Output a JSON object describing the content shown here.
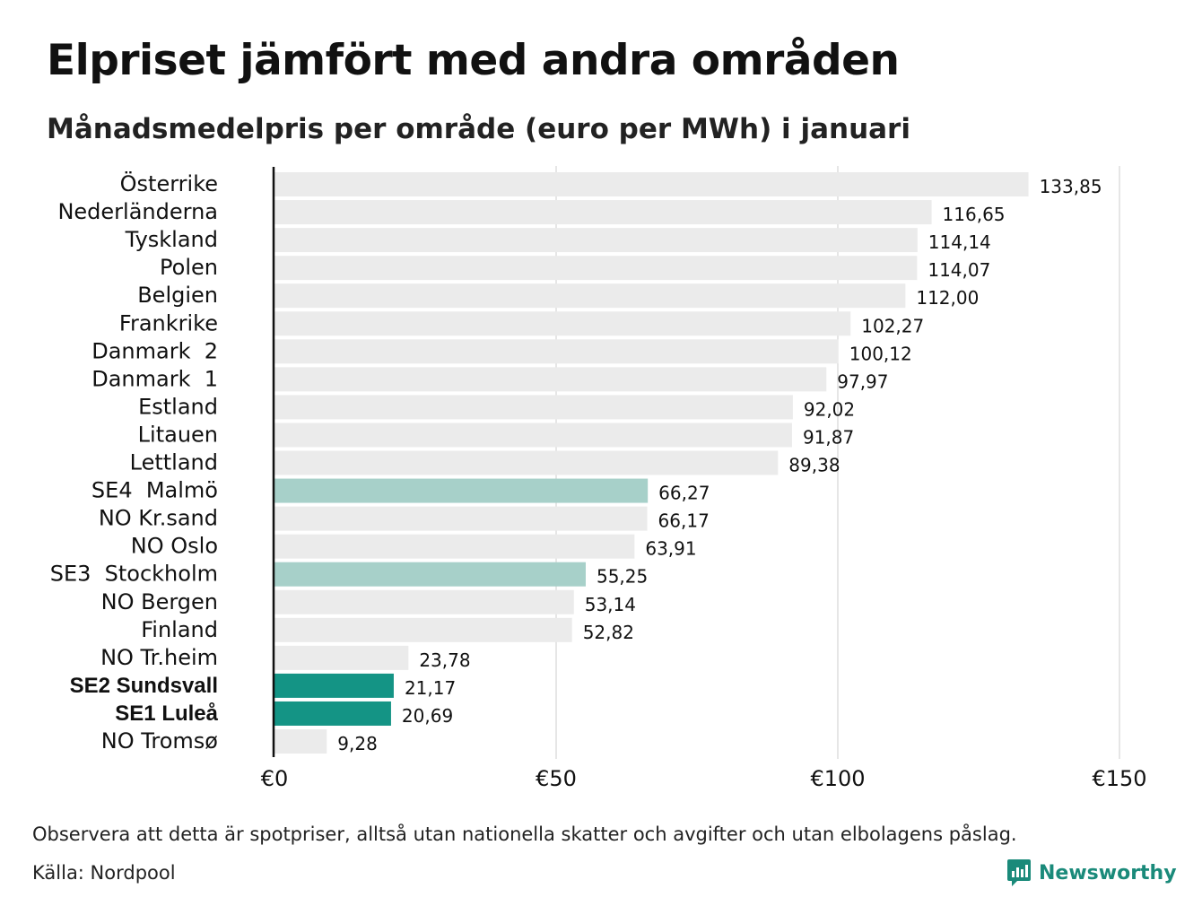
{
  "title": "Elpriset jämfört med andra områden",
  "subtitle": "Månadsmedelpris per område (euro per MWh) i januari",
  "note": "Observera att detta är spotpriser, alltså utan nationella skatter och avgifter och utan elbolagens påslag.",
  "source": "Källa: Nordpool",
  "brand": {
    "name": "Newsworthy",
    "icon": "newsworthy-logo-icon",
    "color": "#1a8a7a"
  },
  "colors": {
    "default": "#ebebeb",
    "light_highlight": "#a7d0c9",
    "strong_highlight": "#149485",
    "axis": "#111111",
    "grid": "#cccccc"
  },
  "chart_data": {
    "type": "bar",
    "orientation": "horizontal",
    "categories": [
      "Österrike",
      "Nederländerna",
      "Tyskland",
      "Polen",
      "Belgien",
      "Frankrike",
      "Danmark  2",
      "Danmark  1",
      "Estland",
      "Litauen",
      "Lettland",
      "SE4  Malmö",
      "NO Kr.sand",
      "NO Oslo",
      "SE3  Stockholm",
      "NO Bergen",
      "Finland",
      "NO Tr.heim",
      "SE2 Sundsvall",
      "SE1 Luleå",
      "NO Tromsø"
    ],
    "values": [
      133.85,
      116.65,
      114.14,
      114.07,
      112.0,
      102.27,
      100.12,
      97.97,
      92.02,
      91.87,
      89.38,
      66.27,
      66.17,
      63.91,
      55.25,
      53.14,
      52.82,
      23.78,
      21.17,
      20.69,
      9.28
    ],
    "value_labels": [
      "133,85",
      "116,65",
      "114,14",
      "114,07",
      "112,00",
      "102,27",
      "100,12",
      "97,97",
      "92,02",
      "91,87",
      "89,38",
      "66,27",
      "66,17",
      "63,91",
      "55,25",
      "53,14",
      "52,82",
      "23,78",
      "21,17",
      "20,69",
      "9,28"
    ],
    "highlight": [
      "none",
      "none",
      "none",
      "none",
      "none",
      "none",
      "none",
      "none",
      "none",
      "none",
      "none",
      "light",
      "none",
      "none",
      "light",
      "none",
      "none",
      "none",
      "strong",
      "strong",
      "none"
    ],
    "bold_labels": [
      "SE2 Sundsvall",
      "SE1 Luleå"
    ],
    "xlim": [
      0,
      150
    ],
    "xticks": [
      0,
      50,
      100,
      150
    ],
    "xtick_labels": [
      "€0",
      "€50",
      "€100",
      "€150"
    ],
    "grid": true,
    "legend": "none"
  }
}
